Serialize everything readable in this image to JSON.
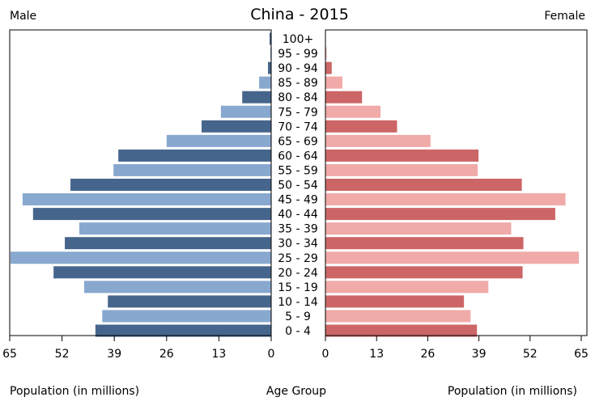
{
  "chart_data": {
    "type": "bar",
    "title": "China - 2015",
    "left_label": "Male",
    "right_label": "Female",
    "xlabel_left": "Population (in millions)",
    "xlabel_center": "Age Group",
    "xlabel_right": "Population (in millions)",
    "xlim": [
      0,
      65
    ],
    "ticks_left": [
      "65",
      "52",
      "39",
      "26",
      "13",
      "0"
    ],
    "ticks_right": [
      "0",
      "13",
      "26",
      "39",
      "52",
      "65"
    ],
    "tick_values": [
      0,
      13,
      26,
      39,
      52,
      65
    ],
    "grid": false,
    "categories": [
      "100+",
      "95 - 99",
      "90 - 94",
      "85 - 89",
      "80 - 84",
      "75 - 79",
      "70 - 74",
      "65 - 69",
      "60 - 64",
      "55 - 59",
      "50 - 54",
      "45 - 49",
      "40 - 44",
      "35 - 39",
      "30 - 34",
      "25 - 29",
      "20 - 24",
      "15 - 19",
      "10 - 14",
      "5 - 9",
      "0 - 4"
    ],
    "series": [
      {
        "name": "Male",
        "values": [
          0.4,
          0.2,
          0.8,
          3.0,
          7.2,
          12.5,
          17.3,
          26.0,
          38.0,
          39.2,
          49.9,
          61.8,
          59.2,
          47.7,
          51.3,
          64.8,
          54.1,
          46.5,
          40.6,
          42.0,
          43.7
        ]
      },
      {
        "name": "Female",
        "values": [
          0.1,
          0.3,
          1.6,
          4.3,
          9.3,
          14.0,
          18.2,
          26.7,
          38.9,
          38.7,
          49.9,
          61.0,
          58.4,
          47.2,
          50.3,
          64.4,
          50.1,
          41.4,
          35.2,
          36.9,
          38.5
        ]
      }
    ],
    "colors": {
      "male_dark": "#46658c",
      "male_light": "#88a8cf",
      "female_dark": "#cc6666",
      "female_light": "#f0aaa8"
    }
  }
}
